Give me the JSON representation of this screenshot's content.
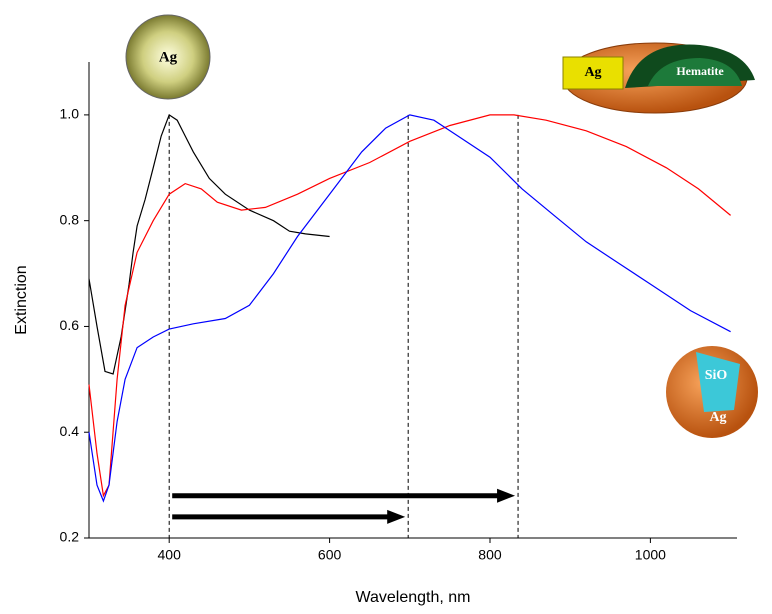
{
  "chart_data": {
    "type": "line",
    "xlabel": "Wavelength, nm",
    "ylabel": "Extinction",
    "xlim": [
      300,
      1108
    ],
    "ylim": [
      0.2,
      1.1
    ],
    "xticks": [
      400,
      600,
      800,
      1000
    ],
    "yticks": [
      0.2,
      0.4,
      0.6,
      0.8,
      {
        "value": 1,
        "label": "1.0"
      }
    ],
    "series": [
      {
        "color": "#000000",
        "x": [
          300,
          310,
          320,
          330,
          340,
          350,
          355,
          360,
          370,
          380,
          390,
          400,
          410,
          420,
          430,
          450,
          470,
          500,
          530,
          550,
          570,
          600
        ],
        "values": [
          0.69,
          0.6,
          0.515,
          0.51,
          0.58,
          0.68,
          0.74,
          0.79,
          0.84,
          0.9,
          0.96,
          1.0,
          0.99,
          0.96,
          0.93,
          0.88,
          0.85,
          0.82,
          0.8,
          0.78,
          0.775,
          0.77
        ]
      },
      {
        "color": "#ff0000",
        "x": [
          300,
          310,
          318,
          325,
          335,
          345,
          360,
          380,
          400,
          420,
          440,
          460,
          490,
          520,
          560,
          600,
          650,
          700,
          750,
          800,
          830,
          870,
          920,
          970,
          1020,
          1060,
          1100
        ],
        "values": [
          0.49,
          0.36,
          0.28,
          0.3,
          0.5,
          0.64,
          0.74,
          0.8,
          0.85,
          0.87,
          0.86,
          0.835,
          0.82,
          0.825,
          0.85,
          0.88,
          0.91,
          0.95,
          0.98,
          1.0,
          1.0,
          0.99,
          0.97,
          0.94,
          0.9,
          0.86,
          0.81
        ]
      },
      {
        "color": "#0000ff",
        "x": [
          300,
          310,
          318,
          325,
          335,
          345,
          360,
          380,
          400,
          430,
          470,
          500,
          530,
          560,
          600,
          640,
          670,
          700,
          730,
          760,
          800,
          840,
          880,
          920,
          960,
          1000,
          1050,
          1100
        ],
        "values": [
          0.4,
          0.3,
          0.27,
          0.3,
          0.42,
          0.5,
          0.56,
          0.58,
          0.595,
          0.605,
          0.615,
          0.64,
          0.7,
          0.77,
          0.85,
          0.93,
          0.975,
          1.0,
          0.99,
          0.96,
          0.92,
          0.86,
          0.81,
          0.76,
          0.72,
          0.68,
          0.63,
          0.59
        ]
      }
    ],
    "reference_lines": [
      400,
      698,
      835
    ],
    "arrows": [
      {
        "from": 400,
        "to": 835,
        "y": 0.28
      },
      {
        "from": 400,
        "to": 698,
        "y": 0.24
      }
    ],
    "insets": {
      "silver": "Ag",
      "hematite": {
        "core": "Ag",
        "shell": "Hematite"
      },
      "silica": {
        "core": "SiO",
        "shell": "Ag"
      }
    }
  }
}
